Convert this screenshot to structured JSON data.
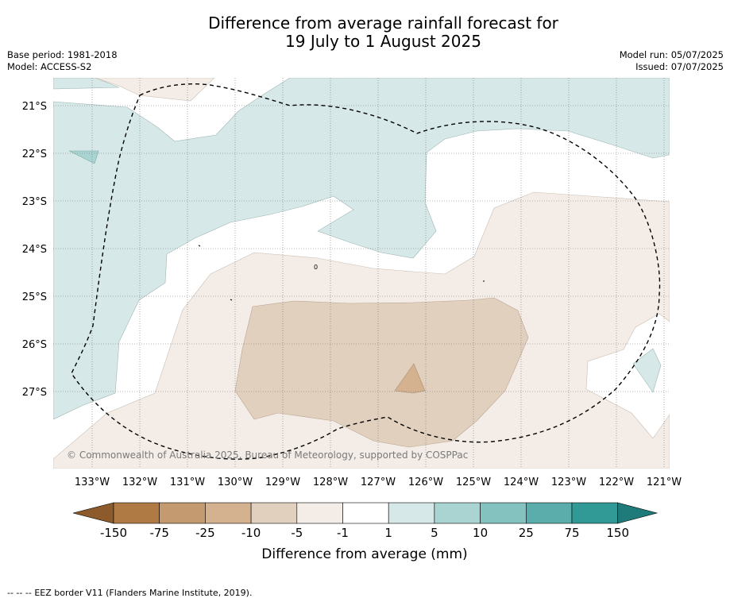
{
  "title": {
    "line1": "Difference from average rainfall forecast for",
    "line2": "19 July to 1 August 2025"
  },
  "header_left": {
    "base_period": "Base period: 1981-2018",
    "model": "Model: ACCESS-S2"
  },
  "header_right": {
    "model_run": "Model run: 05/07/2025",
    "issued": "Issued: 07/07/2025"
  },
  "map": {
    "lat_labels": [
      "21°S",
      "22°S",
      "23°S",
      "24°S",
      "25°S",
      "26°S",
      "27°S"
    ],
    "lon_labels": [
      "133°W",
      "132°W",
      "131°W",
      "130°W",
      "129°W",
      "128°W",
      "127°W",
      "126°W",
      "125°W",
      "124°W",
      "123°W",
      "122°W",
      "121°W"
    ],
    "credit": "© Commonwealth of Australia 2025, Bureau of Meteorology, supported by COSPPac",
    "contour_label": "0"
  },
  "colorbar": {
    "labels": [
      "-150",
      "-75",
      "-25",
      "-10",
      "-5",
      "-1",
      "1",
      "5",
      "10",
      "25",
      "75",
      "150"
    ],
    "colors": [
      "#8c5a2b",
      "#b07a45",
      "#c49a70",
      "#d4b290",
      "#e2d0bf",
      "#f4ede7",
      "#ffffff",
      "#d6e9e8",
      "#a9d4d2",
      "#84c2bf",
      "#5aadaa",
      "#329a96",
      "#1f7b7a"
    ],
    "title": "Difference from average (mm)"
  },
  "footer": {
    "legend_symbol": "-- -- --",
    "eez_text": "EEZ border V11 (Flanders Marine Institute, 2019)."
  }
}
